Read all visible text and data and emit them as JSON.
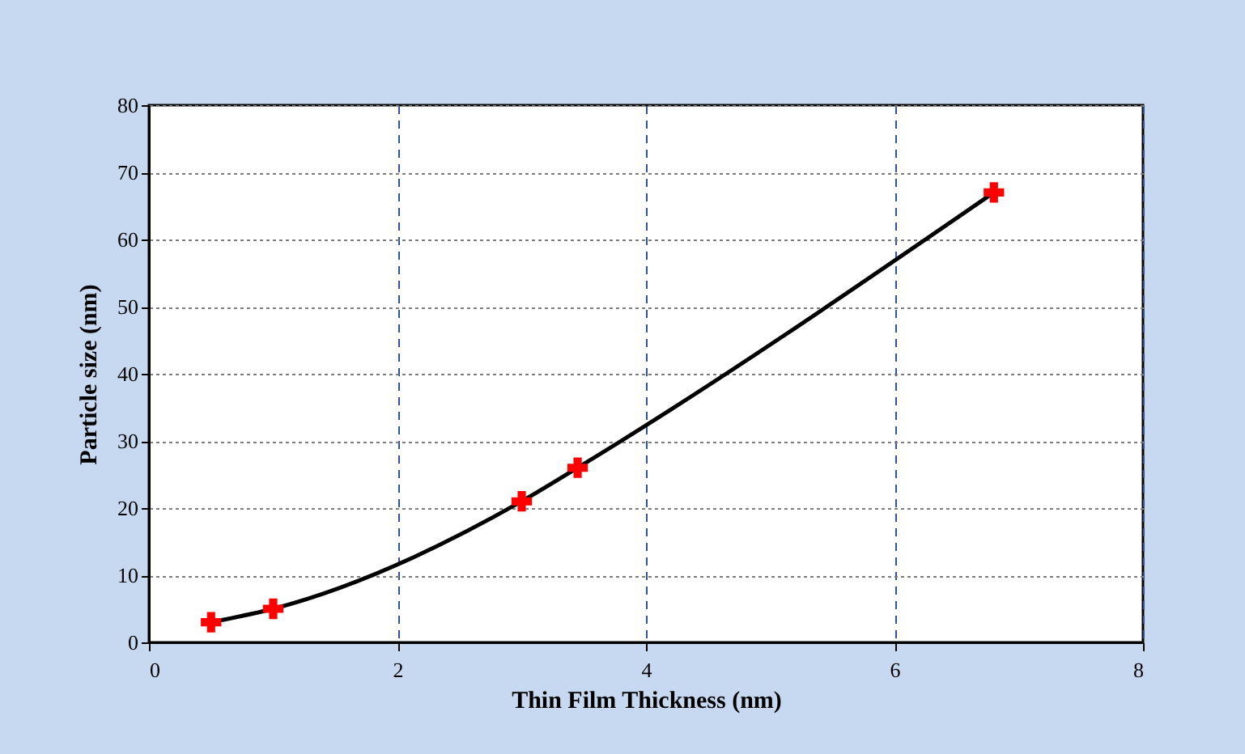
{
  "chart_data": {
    "type": "scatter",
    "xlabel": "Thin Film Thickness (nm)",
    "ylabel": "Particle size (nm)",
    "series": [
      {
        "type": "line",
        "color": "#000000",
        "x": [
          0.5,
          1,
          3,
          3.45,
          6.8
        ],
        "values": [
          3,
          5,
          21,
          26,
          67
        ],
        "line_style": "solid"
      },
      {
        "type": "scatter",
        "color": "#ff0000",
        "x": [
          0.5,
          1,
          3,
          3.45,
          6.8
        ],
        "values": [
          3,
          5,
          21,
          26,
          67
        ],
        "marker": "cross"
      }
    ],
    "xlim": [
      0,
      8
    ],
    "xticks": [
      0,
      2,
      4,
      6,
      8
    ],
    "ylim": [
      0,
      80
    ],
    "yticks": [
      0,
      10,
      20,
      30,
      40,
      50,
      60,
      70,
      80
    ],
    "grid": true
  }
}
